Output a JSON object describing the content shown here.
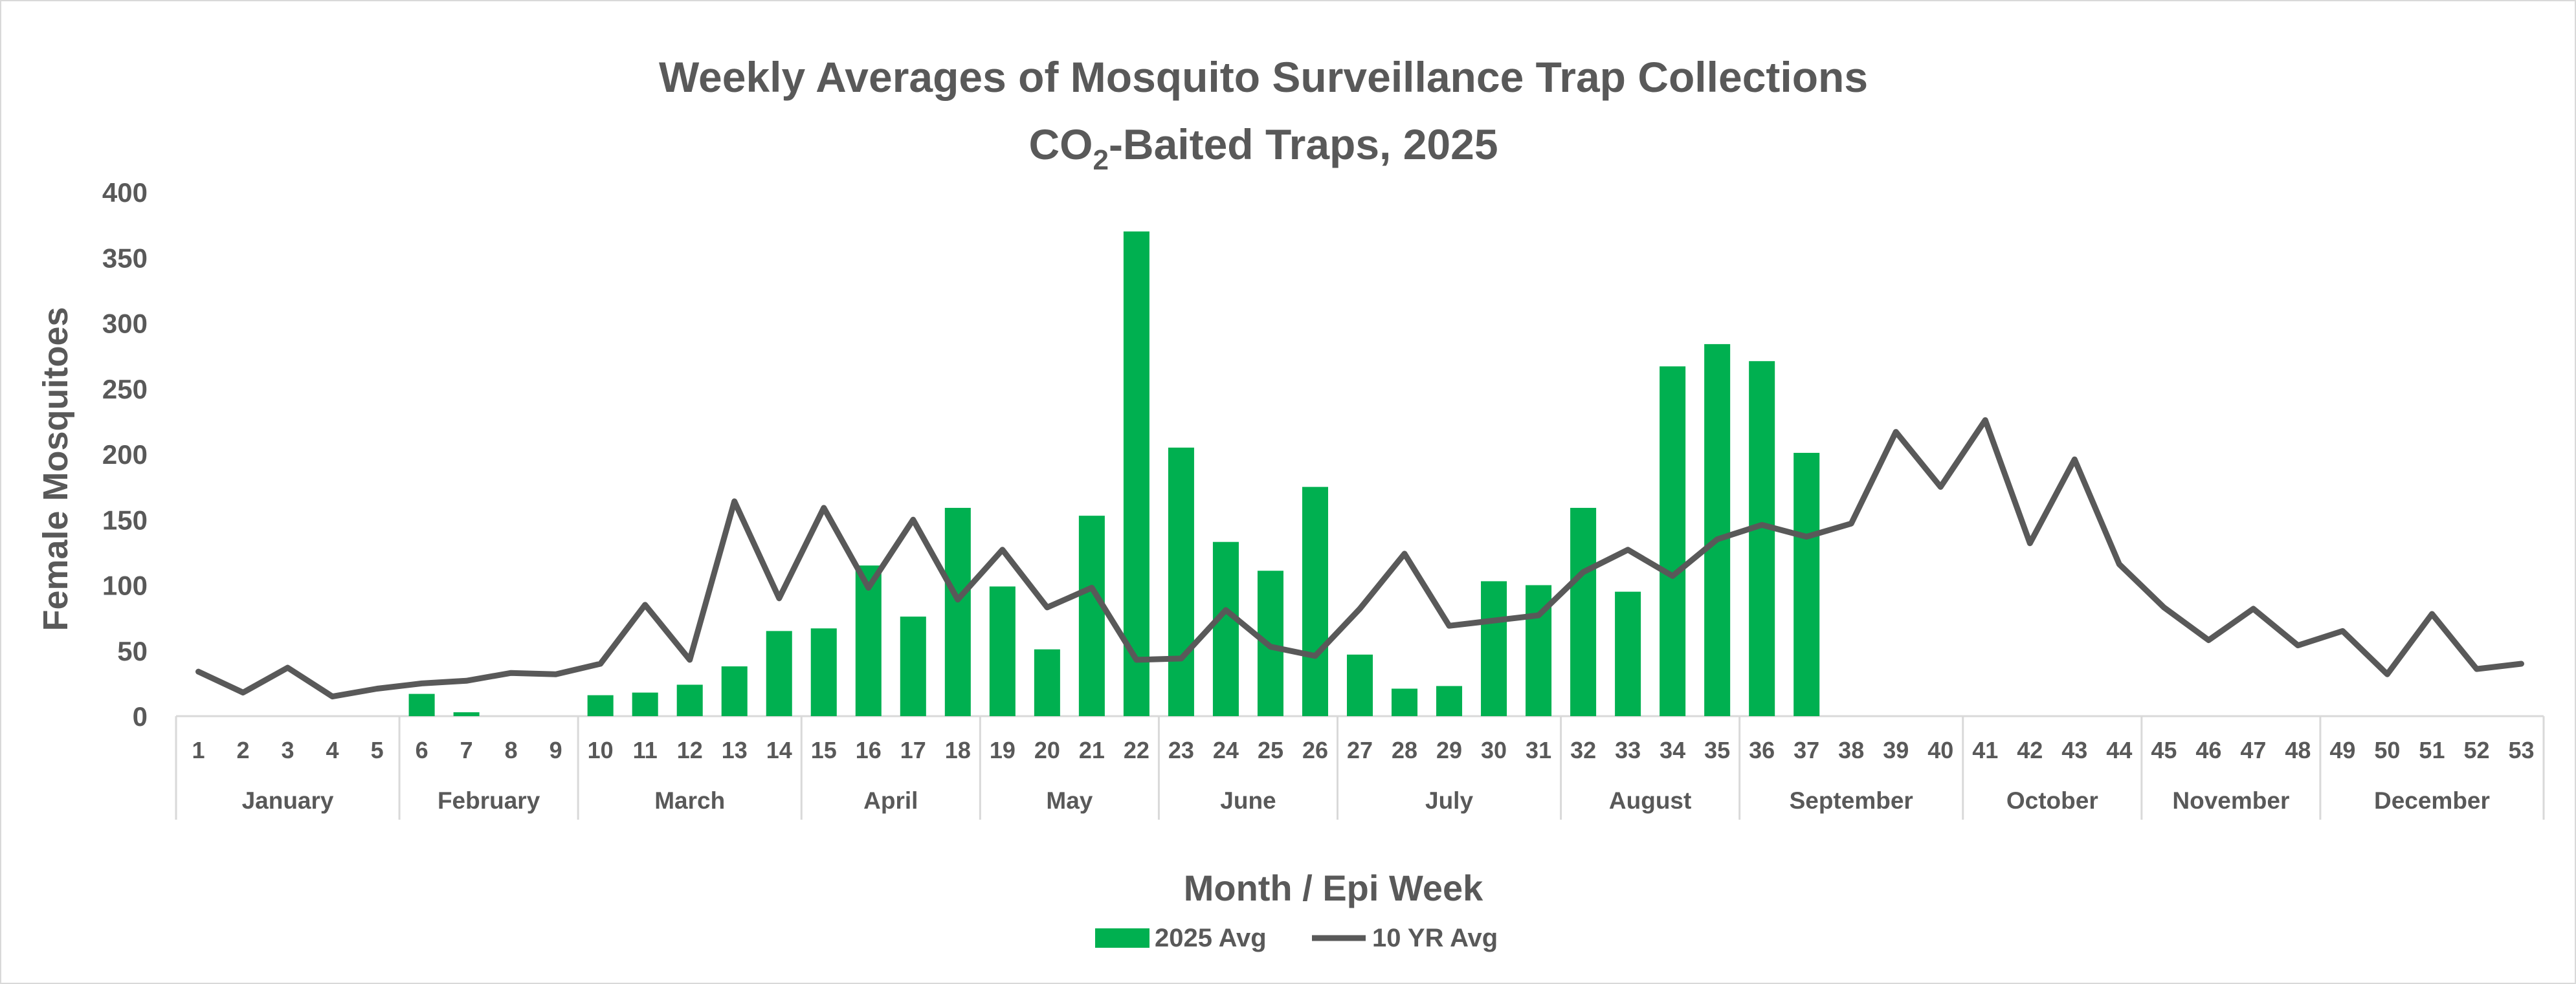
{
  "chart_data": {
    "type": "bar+line",
    "title_line1": "Weekly Averages of Mosquito Surveillance Trap Collections",
    "title_line2_prefix": "CO",
    "title_line2_sub": "2",
    "title_line2_suffix": "-Baited Traps, 2025",
    "xlabel": "Month / Epi Week",
    "ylabel": "Female Mosquitoes",
    "ylim": [
      0,
      400
    ],
    "yticks": [
      0,
      50,
      100,
      150,
      200,
      250,
      300,
      350,
      400
    ],
    "weeks": [
      "1",
      "2",
      "3",
      "4",
      "5",
      "6",
      "7",
      "8",
      "9",
      "10",
      "11",
      "12",
      "13",
      "14",
      "15",
      "16",
      "17",
      "18",
      "19",
      "20",
      "21",
      "22",
      "23",
      "24",
      "25",
      "26",
      "27",
      "28",
      "29",
      "30",
      "31",
      "32",
      "33",
      "34",
      "35",
      "36",
      "37",
      "38",
      "39",
      "40",
      "41",
      "42",
      "43",
      "44",
      "45",
      "46",
      "47",
      "48",
      "49",
      "50",
      "51",
      "52",
      "53"
    ],
    "months": [
      {
        "name": "January",
        "start": 1,
        "end": 5
      },
      {
        "name": "February",
        "start": 6,
        "end": 9
      },
      {
        "name": "March",
        "start": 10,
        "end": 14
      },
      {
        "name": "April",
        "start": 15,
        "end": 18
      },
      {
        "name": "May",
        "start": 19,
        "end": 22
      },
      {
        "name": "June",
        "start": 23,
        "end": 26
      },
      {
        "name": "July",
        "start": 27,
        "end": 31
      },
      {
        "name": "August",
        "start": 32,
        "end": 35
      },
      {
        "name": "September",
        "start": 36,
        "end": 40
      },
      {
        "name": "October",
        "start": 41,
        "end": 44
      },
      {
        "name": "November",
        "start": 45,
        "end": 48
      },
      {
        "name": "December",
        "start": 49,
        "end": 53
      }
    ],
    "series": [
      {
        "name": "2025 Avg",
        "type": "bar",
        "color": "#00b050",
        "values": [
          null,
          null,
          null,
          null,
          null,
          17,
          3,
          null,
          null,
          16,
          18,
          24,
          38,
          65,
          67,
          115,
          76,
          159,
          99,
          51,
          153,
          370,
          205,
          133,
          111,
          175,
          47,
          21,
          23,
          103,
          100,
          159,
          95,
          267,
          284,
          271,
          201,
          null,
          null,
          null,
          null,
          null,
          null,
          null,
          null,
          null,
          null,
          null,
          null,
          null,
          null,
          null,
          null
        ]
      },
      {
        "name": "10 YR Avg",
        "type": "line",
        "color": "#595959",
        "values": [
          34,
          18,
          37,
          15,
          21,
          25,
          27,
          33,
          32,
          40,
          85,
          43,
          164,
          90,
          159,
          98,
          150,
          89,
          127,
          83,
          98,
          43,
          44,
          81,
          53,
          46,
          82,
          124,
          69,
          73,
          77,
          110,
          127,
          107,
          135,
          146,
          137,
          147,
          217,
          175,
          226,
          132,
          196,
          116,
          83,
          58,
          82,
          54,
          65,
          32,
          78,
          36,
          40
        ]
      }
    ],
    "legend": [
      "2025 Avg",
      "10 YR Avg"
    ]
  }
}
